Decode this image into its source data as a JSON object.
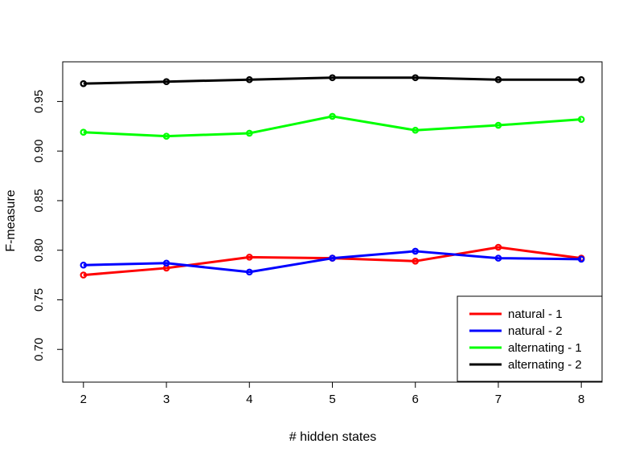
{
  "chart_data": {
    "type": "line",
    "title": "",
    "xlabel": "# hidden states",
    "ylabel": "F-measure",
    "x": [
      2,
      3,
      4,
      5,
      6,
      7,
      8
    ],
    "x_ticks": [
      "2",
      "3",
      "4",
      "5",
      "6",
      "7",
      "8"
    ],
    "y_ticks": [
      "0.70",
      "0.75",
      "0.80",
      "0.85",
      "0.90",
      "0.95"
    ],
    "xlim": [
      1.75,
      8.25
    ],
    "ylim": [
      0.667,
      0.99
    ],
    "grid": false,
    "legend_position": "bottom-right",
    "series": [
      {
        "name": "natural - 1",
        "color": "#ff0000",
        "values": [
          0.775,
          0.782,
          0.793,
          0.792,
          0.789,
          0.803,
          0.792
        ]
      },
      {
        "name": "natural - 2",
        "color": "#0000ff",
        "values": [
          0.785,
          0.787,
          0.778,
          0.792,
          0.799,
          0.792,
          0.791
        ]
      },
      {
        "name": "alternating - 1",
        "color": "#00ff00",
        "values": [
          0.919,
          0.915,
          0.918,
          0.935,
          0.921,
          0.926,
          0.932
        ]
      },
      {
        "name": "alternating - 2",
        "color": "#000000",
        "values": [
          0.968,
          0.97,
          0.972,
          0.974,
          0.974,
          0.972,
          0.972
        ]
      }
    ]
  }
}
